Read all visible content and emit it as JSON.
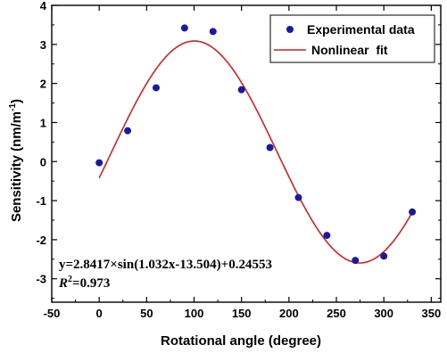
{
  "chart_data": {
    "type": "scatter",
    "title": "",
    "xlabel": "Rotational angle (degree)",
    "ylabel": "Sensitivity (nm/m",
    "ylabel_superscript": "-1",
    "ylabel_close": ")",
    "xlim": [
      -50,
      360
    ],
    "ylim": [
      -3.6,
      4
    ],
    "xticks": [
      -50,
      0,
      50,
      100,
      150,
      200,
      250,
      300,
      350
    ],
    "yticks": [
      -3,
      -2,
      -1,
      0,
      1,
      2,
      3,
      4
    ],
    "legend_position": "top-right",
    "series": [
      {
        "name": "Experimental data",
        "kind": "scatter",
        "color": "#1a1aa0",
        "x": [
          0,
          30,
          60,
          90,
          120,
          150,
          180,
          210,
          240,
          270,
          300,
          330
        ],
        "y": [
          -0.03,
          0.79,
          1.89,
          3.42,
          3.33,
          1.84,
          0.36,
          -0.92,
          -1.89,
          -2.53,
          -2.42,
          -1.29
        ]
      },
      {
        "name": "Nonlinear  fit",
        "kind": "line",
        "color": "#dd2020",
        "model": {
          "A": 2.8417,
          "B": 1.032,
          "C": -13.504,
          "D": 0.24553,
          "x_range": [
            0,
            330
          ]
        }
      }
    ],
    "annotations": {
      "equation": "y=2.8417×sin(1.032x-13.504)+0.24553",
      "r2_label": "R",
      "r2_sup": "2",
      "r2_value": "=0.973"
    }
  }
}
